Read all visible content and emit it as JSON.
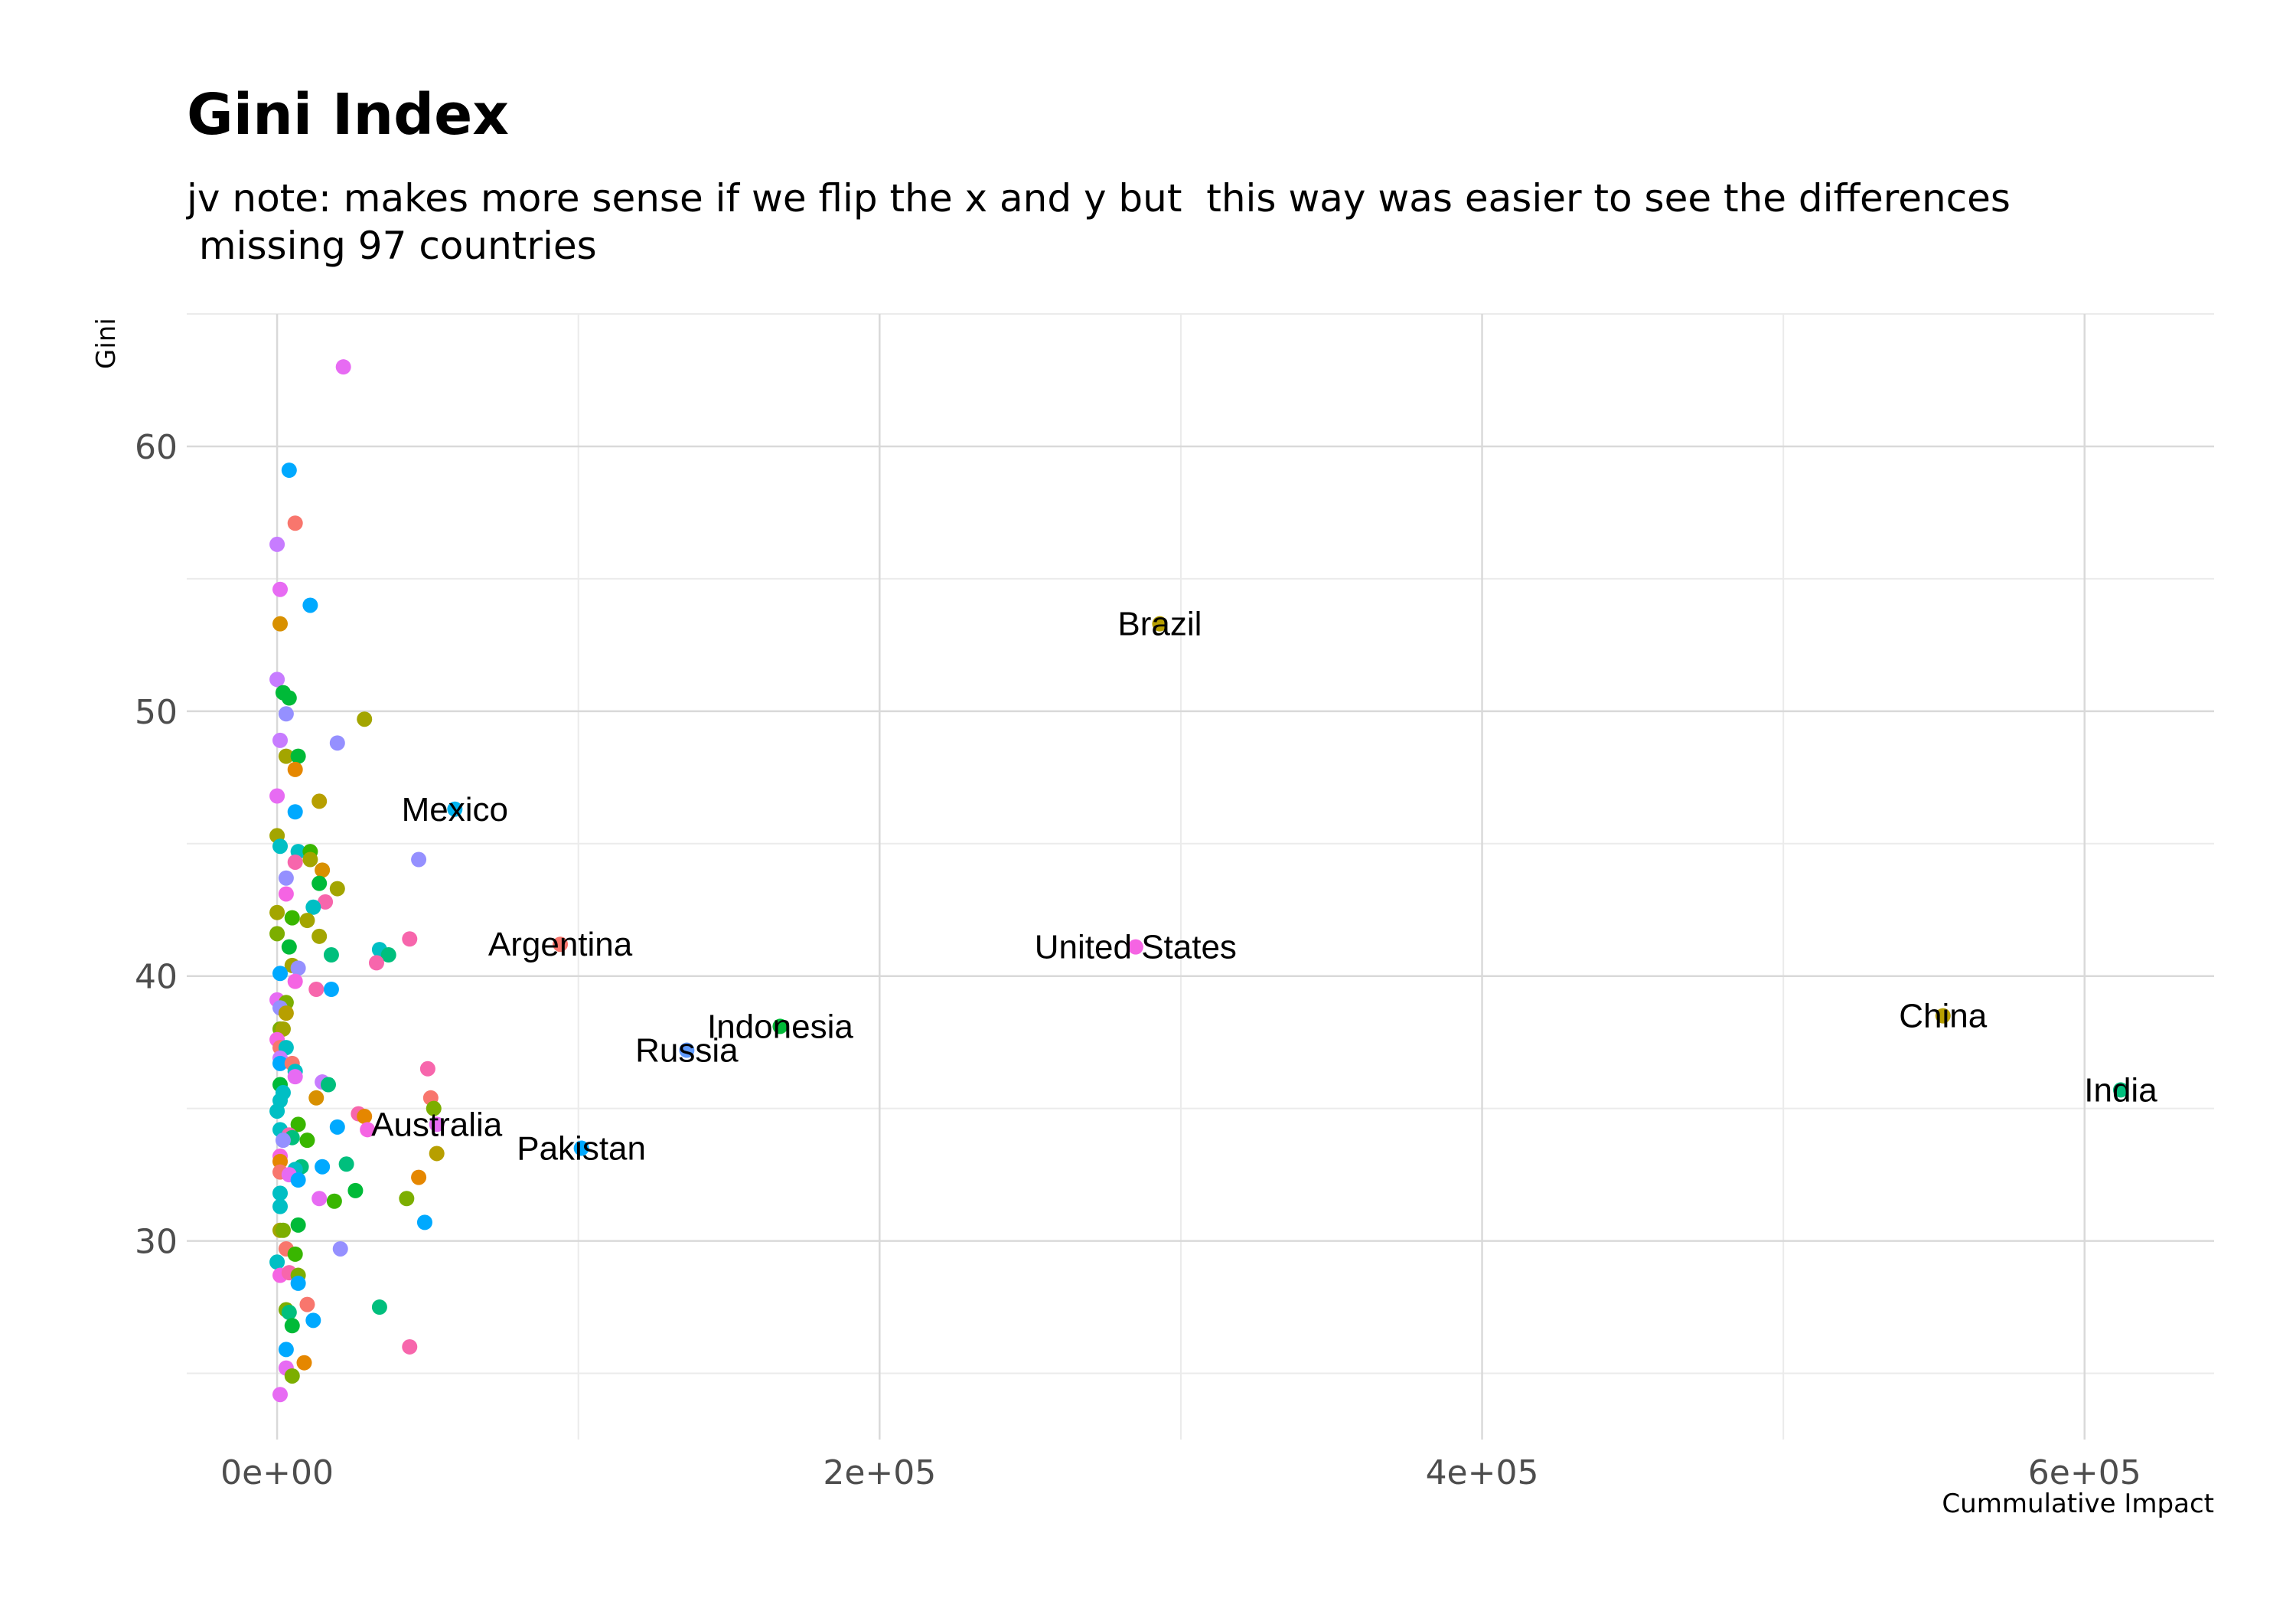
{
  "chart_data": {
    "type": "scatter",
    "title": "Gini Index",
    "subtitle_lines": [
      "jv note: makes more sense if we flip the x and y but  this way was easier to see the differences",
      " missing 97 countries"
    ],
    "xlabel": "Cummulative Impact",
    "ylabel": "Gini",
    "xlim": [
      -30000,
      643000
    ],
    "ylim": [
      22.5,
      65
    ],
    "x_ticks": [
      0,
      200000,
      400000,
      600000
    ],
    "x_tick_labels": [
      "0e+00",
      "2e+05",
      "4e+05",
      "6e+05"
    ],
    "y_ticks": [
      30,
      40,
      50,
      60
    ],
    "y_tick_labels": [
      "30",
      "40",
      "50",
      "60"
    ],
    "grid": true,
    "legend": "none",
    "labeled_points": [
      {
        "label": "Brazil",
        "x": 293000,
        "y": 53.3,
        "color": "#b79f00"
      },
      {
        "label": "Mexico",
        "x": 59000,
        "y": 46.3,
        "color": "#00b4f0"
      },
      {
        "label": "Argentina",
        "x": 94000,
        "y": 41.2,
        "color": "#f8766d"
      },
      {
        "label": "United States",
        "x": 285000,
        "y": 41.1,
        "color": "#f564e3"
      },
      {
        "label": "China",
        "x": 553000,
        "y": 38.5,
        "color": "#b79f00"
      },
      {
        "label": "Indonesia",
        "x": 167000,
        "y": 38.1,
        "color": "#00ba38"
      },
      {
        "label": "Russia",
        "x": 136000,
        "y": 37.2,
        "color": "#619cff"
      },
      {
        "label": "India",
        "x": 612000,
        "y": 35.7,
        "color": "#00bf7d"
      },
      {
        "label": "Australia",
        "x": 53000,
        "y": 34.4,
        "color": "#e76bf3"
      },
      {
        "label": "Pakistan",
        "x": 101000,
        "y": 33.5,
        "color": "#00a9ff"
      }
    ],
    "points": [
      {
        "x": 22000,
        "y": 63.0,
        "color": "#e76bf3"
      },
      {
        "x": 4000,
        "y": 59.1,
        "color": "#00a9ff"
      },
      {
        "x": 6000,
        "y": 57.1,
        "color": "#f8766d"
      },
      {
        "x": 0,
        "y": 56.3,
        "color": "#c77cff"
      },
      {
        "x": 1000,
        "y": 54.6,
        "color": "#e76bf3"
      },
      {
        "x": 11000,
        "y": 54.0,
        "color": "#00a9ff"
      },
      {
        "x": 1000,
        "y": 53.3,
        "color": "#d89000"
      },
      {
        "x": 0,
        "y": 51.2,
        "color": "#c77cff"
      },
      {
        "x": 2000,
        "y": 50.7,
        "color": "#00ba38"
      },
      {
        "x": 4000,
        "y": 50.5,
        "color": "#00ba38"
      },
      {
        "x": 3000,
        "y": 49.9,
        "color": "#9590ff"
      },
      {
        "x": 29000,
        "y": 49.7,
        "color": "#a3a500"
      },
      {
        "x": 1000,
        "y": 48.9,
        "color": "#c77cff"
      },
      {
        "x": 20000,
        "y": 48.8,
        "color": "#9590ff"
      },
      {
        "x": 3000,
        "y": 48.3,
        "color": "#a3a500"
      },
      {
        "x": 7000,
        "y": 48.3,
        "color": "#00ba38"
      },
      {
        "x": 6000,
        "y": 47.8,
        "color": "#e58700"
      },
      {
        "x": 0,
        "y": 46.8,
        "color": "#e76bf3"
      },
      {
        "x": 14000,
        "y": 46.6,
        "color": "#b79f00"
      },
      {
        "x": 6000,
        "y": 46.2,
        "color": "#00a9ff"
      },
      {
        "x": 0,
        "y": 45.3,
        "color": "#a3a500"
      },
      {
        "x": 1000,
        "y": 44.9,
        "color": "#00bfc4"
      },
      {
        "x": 7000,
        "y": 44.7,
        "color": "#00bfc4"
      },
      {
        "x": 11000,
        "y": 44.7,
        "color": "#39b600"
      },
      {
        "x": 11000,
        "y": 44.4,
        "color": "#a3a500"
      },
      {
        "x": 6000,
        "y": 44.3,
        "color": "#f766ac"
      },
      {
        "x": 47000,
        "y": 44.4,
        "color": "#9590ff"
      },
      {
        "x": 15000,
        "y": 44.0,
        "color": "#d89000"
      },
      {
        "x": 3000,
        "y": 43.7,
        "color": "#9590ff"
      },
      {
        "x": 14000,
        "y": 43.5,
        "color": "#00ba38"
      },
      {
        "x": 20000,
        "y": 43.3,
        "color": "#a3a500"
      },
      {
        "x": 3000,
        "y": 43.1,
        "color": "#f564e3"
      },
      {
        "x": 16000,
        "y": 42.8,
        "color": "#f766ac"
      },
      {
        "x": 12000,
        "y": 42.6,
        "color": "#00bfc4"
      },
      {
        "x": 0,
        "y": 42.4,
        "color": "#a3a500"
      },
      {
        "x": 5000,
        "y": 42.2,
        "color": "#39b600"
      },
      {
        "x": 10000,
        "y": 42.1,
        "color": "#a3a500"
      },
      {
        "x": 0,
        "y": 41.6,
        "color": "#7cae00"
      },
      {
        "x": 14000,
        "y": 41.5,
        "color": "#a3a500"
      },
      {
        "x": 44000,
        "y": 41.4,
        "color": "#f766ac"
      },
      {
        "x": 4000,
        "y": 41.1,
        "color": "#00ba38"
      },
      {
        "x": 34000,
        "y": 41.0,
        "color": "#00bfc4"
      },
      {
        "x": 37000,
        "y": 40.8,
        "color": "#00bf7d"
      },
      {
        "x": 18000,
        "y": 40.8,
        "color": "#00bf7d"
      },
      {
        "x": 33000,
        "y": 40.5,
        "color": "#f766ac"
      },
      {
        "x": 5000,
        "y": 40.4,
        "color": "#a3a500"
      },
      {
        "x": 7000,
        "y": 40.3,
        "color": "#9590ff"
      },
      {
        "x": 1000,
        "y": 40.1,
        "color": "#00a9ff"
      },
      {
        "x": 6000,
        "y": 39.8,
        "color": "#f564e3"
      },
      {
        "x": 18000,
        "y": 39.5,
        "color": "#00a9ff"
      },
      {
        "x": 13000,
        "y": 39.5,
        "color": "#f766ac"
      },
      {
        "x": 0,
        "y": 39.1,
        "color": "#e76bf3"
      },
      {
        "x": 3000,
        "y": 39.0,
        "color": "#7cae00"
      },
      {
        "x": 1000,
        "y": 38.8,
        "color": "#9590ff"
      },
      {
        "x": 3000,
        "y": 38.6,
        "color": "#b79f00"
      },
      {
        "x": 1000,
        "y": 38.0,
        "color": "#7cae00"
      },
      {
        "x": 2000,
        "y": 38.0,
        "color": "#a3a500"
      },
      {
        "x": 0,
        "y": 37.6,
        "color": "#f564e3"
      },
      {
        "x": 1000,
        "y": 37.3,
        "color": "#f8766d"
      },
      {
        "x": 3000,
        "y": 37.3,
        "color": "#00bfc4"
      },
      {
        "x": 1000,
        "y": 36.9,
        "color": "#c77cff"
      },
      {
        "x": 1000,
        "y": 36.7,
        "color": "#00a9ff"
      },
      {
        "x": 5000,
        "y": 36.7,
        "color": "#f8766d"
      },
      {
        "x": 6000,
        "y": 36.4,
        "color": "#00bfc4"
      },
      {
        "x": 6000,
        "y": 36.2,
        "color": "#e76bf3"
      },
      {
        "x": 50000,
        "y": 36.5,
        "color": "#f766ac"
      },
      {
        "x": 15000,
        "y": 36.0,
        "color": "#c77cff"
      },
      {
        "x": 17000,
        "y": 35.9,
        "color": "#00bf7d"
      },
      {
        "x": 1000,
        "y": 35.9,
        "color": "#00ba38"
      },
      {
        "x": 2000,
        "y": 35.6,
        "color": "#00bfc4"
      },
      {
        "x": 1000,
        "y": 35.3,
        "color": "#00bfc4"
      },
      {
        "x": 13000,
        "y": 35.4,
        "color": "#d89000"
      },
      {
        "x": 51000,
        "y": 35.4,
        "color": "#f8766d"
      },
      {
        "x": 52000,
        "y": 35.0,
        "color": "#7cae00"
      },
      {
        "x": 0,
        "y": 34.9,
        "color": "#00bfc4"
      },
      {
        "x": 27000,
        "y": 34.8,
        "color": "#f766ac"
      },
      {
        "x": 29000,
        "y": 34.7,
        "color": "#e58700"
      },
      {
        "x": 7000,
        "y": 34.4,
        "color": "#39b600"
      },
      {
        "x": 20000,
        "y": 34.3,
        "color": "#00a9ff"
      },
      {
        "x": 30000,
        "y": 34.2,
        "color": "#f564e3"
      },
      {
        "x": 1000,
        "y": 34.2,
        "color": "#00bfc4"
      },
      {
        "x": 4000,
        "y": 34.0,
        "color": "#f766ac"
      },
      {
        "x": 5000,
        "y": 33.9,
        "color": "#00bf7d"
      },
      {
        "x": 10000,
        "y": 33.8,
        "color": "#39b600"
      },
      {
        "x": 2000,
        "y": 33.8,
        "color": "#9590ff"
      },
      {
        "x": 53000,
        "y": 33.3,
        "color": "#b79f00"
      },
      {
        "x": 1000,
        "y": 33.2,
        "color": "#f564e3"
      },
      {
        "x": 1000,
        "y": 33.0,
        "color": "#e58700"
      },
      {
        "x": 23000,
        "y": 32.9,
        "color": "#00bf7d"
      },
      {
        "x": 8000,
        "y": 32.8,
        "color": "#00bf7d"
      },
      {
        "x": 15000,
        "y": 32.8,
        "color": "#00a9ff"
      },
      {
        "x": 6000,
        "y": 32.7,
        "color": "#00bfc4"
      },
      {
        "x": 1000,
        "y": 32.6,
        "color": "#f8766d"
      },
      {
        "x": 4000,
        "y": 32.5,
        "color": "#e76bf3"
      },
      {
        "x": 7000,
        "y": 32.3,
        "color": "#00a9ff"
      },
      {
        "x": 47000,
        "y": 32.4,
        "color": "#e58700"
      },
      {
        "x": 26000,
        "y": 31.9,
        "color": "#00ba38"
      },
      {
        "x": 1000,
        "y": 31.8,
        "color": "#00bfc4"
      },
      {
        "x": 43000,
        "y": 31.6,
        "color": "#7cae00"
      },
      {
        "x": 14000,
        "y": 31.6,
        "color": "#e76bf3"
      },
      {
        "x": 19000,
        "y": 31.5,
        "color": "#39b600"
      },
      {
        "x": 1000,
        "y": 31.3,
        "color": "#00bfc4"
      },
      {
        "x": 49000,
        "y": 30.7,
        "color": "#00a9ff"
      },
      {
        "x": 7000,
        "y": 30.6,
        "color": "#00ba38"
      },
      {
        "x": 1000,
        "y": 30.4,
        "color": "#a3a500"
      },
      {
        "x": 2000,
        "y": 30.4,
        "color": "#7cae00"
      },
      {
        "x": 21000,
        "y": 29.7,
        "color": "#9590ff"
      },
      {
        "x": 3000,
        "y": 29.7,
        "color": "#f8766d"
      },
      {
        "x": 6000,
        "y": 29.5,
        "color": "#39b600"
      },
      {
        "x": 0,
        "y": 29.2,
        "color": "#00bfc4"
      },
      {
        "x": 1000,
        "y": 28.7,
        "color": "#f564e3"
      },
      {
        "x": 4000,
        "y": 28.8,
        "color": "#f766ac"
      },
      {
        "x": 7000,
        "y": 28.7,
        "color": "#7cae00"
      },
      {
        "x": 7000,
        "y": 28.4,
        "color": "#00a9ff"
      },
      {
        "x": 34000,
        "y": 27.5,
        "color": "#00bf7d"
      },
      {
        "x": 10000,
        "y": 27.6,
        "color": "#f8766d"
      },
      {
        "x": 3000,
        "y": 27.4,
        "color": "#7cae00"
      },
      {
        "x": 4000,
        "y": 27.3,
        "color": "#00bf7d"
      },
      {
        "x": 12000,
        "y": 27.0,
        "color": "#00a9ff"
      },
      {
        "x": 5000,
        "y": 26.8,
        "color": "#00ba38"
      },
      {
        "x": 44000,
        "y": 26.0,
        "color": "#f766ac"
      },
      {
        "x": 3000,
        "y": 25.9,
        "color": "#00a9ff"
      },
      {
        "x": 9000,
        "y": 25.4,
        "color": "#e58700"
      },
      {
        "x": 3000,
        "y": 25.2,
        "color": "#e76bf3"
      },
      {
        "x": 5000,
        "y": 24.9,
        "color": "#7cae00"
      },
      {
        "x": 1000,
        "y": 24.2,
        "color": "#e76bf3"
      }
    ]
  }
}
